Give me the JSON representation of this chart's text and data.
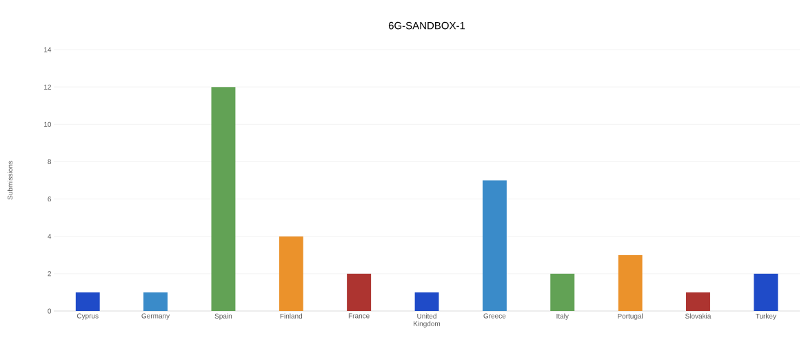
{
  "chart_data": {
    "type": "bar",
    "title": "6G-SANDBOX-1",
    "ylabel": "Submissions",
    "categories": [
      "Cyprus",
      "Germany",
      "Spain",
      "Finland",
      "France",
      "United Kingdom",
      "Greece",
      "Italy",
      "Portugal",
      "Slovakia",
      "Turkey"
    ],
    "values": [
      1,
      1,
      12,
      4,
      2,
      1,
      7,
      2,
      3,
      1,
      2
    ],
    "colors": [
      "#1f4bc8",
      "#3a8bc9",
      "#62a255",
      "#eb922b",
      "#ad3430",
      "#1f4bc8",
      "#3a8bc9",
      "#62a255",
      "#eb922b",
      "#ad3430",
      "#1f4bc8"
    ],
    "ylim": [
      0,
      14
    ],
    "yticks": [
      0,
      2,
      4,
      6,
      8,
      10,
      12,
      14
    ],
    "grid": "y"
  }
}
